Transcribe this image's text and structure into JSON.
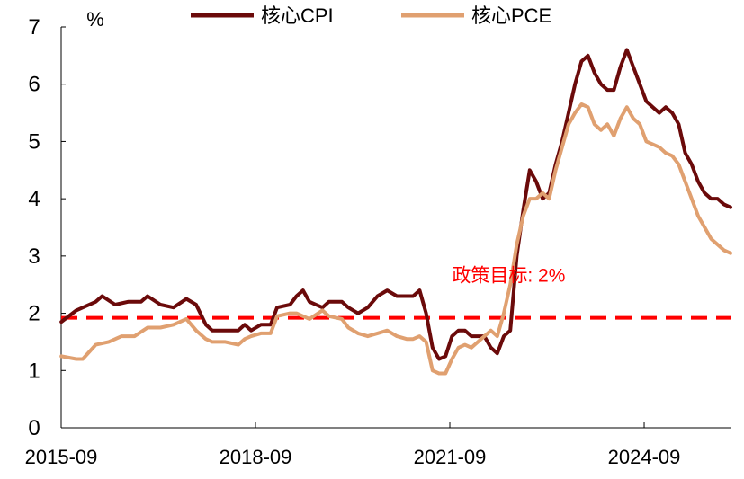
{
  "chart_data": {
    "type": "line",
    "ylabel": "%",
    "ylim": [
      0,
      7
    ],
    "yticks": [
      0,
      1,
      2,
      3,
      4,
      5,
      6,
      7
    ],
    "xlim": [
      2015.667,
      2026.0
    ],
    "xticks": [
      {
        "label": "2015-09",
        "value": 2015.667
      },
      {
        "label": "2018-09",
        "value": 2018.667
      },
      {
        "label": "2021-09",
        "value": 2021.667
      },
      {
        "label": "2024-09",
        "value": 2024.667
      }
    ],
    "legend_position": "top",
    "annotation": {
      "text": "政策目标: 2%",
      "x": 2021.7,
      "y": 2.55
    },
    "series": [
      {
        "name": "核心CPI",
        "color": "#6b0a0a",
        "actual": [
          [
            2015.67,
            1.85
          ],
          [
            2015.9,
            2.05
          ],
          [
            2016.2,
            2.2
          ],
          [
            2016.3,
            2.3
          ],
          [
            2016.5,
            2.15
          ],
          [
            2016.7,
            2.2
          ],
          [
            2016.9,
            2.2
          ],
          [
            2017.0,
            2.3
          ],
          [
            2017.2,
            2.15
          ],
          [
            2017.4,
            2.1
          ],
          [
            2017.6,
            2.25
          ],
          [
            2017.75,
            2.15
          ],
          [
            2017.9,
            1.8
          ],
          [
            2018.0,
            1.7
          ],
          [
            2018.2,
            1.7
          ],
          [
            2018.4,
            1.7
          ],
          [
            2018.5,
            1.8
          ],
          [
            2018.6,
            1.7
          ],
          [
            2018.75,
            1.8
          ],
          [
            2018.9,
            1.8
          ],
          [
            2019.0,
            2.1
          ],
          [
            2019.2,
            2.15
          ],
          [
            2019.3,
            2.3
          ],
          [
            2019.4,
            2.4
          ],
          [
            2019.5,
            2.2
          ],
          [
            2019.7,
            2.1
          ],
          [
            2019.8,
            2.2
          ],
          [
            2020.0,
            2.2
          ],
          [
            2020.1,
            2.1
          ],
          [
            2020.25,
            2.0
          ],
          [
            2020.4,
            2.1
          ],
          [
            2020.55,
            2.3
          ],
          [
            2020.7,
            2.4
          ],
          [
            2020.85,
            2.3
          ],
          [
            2021.0,
            2.3
          ],
          [
            2021.1,
            2.3
          ],
          [
            2021.2,
            2.4
          ],
          [
            2021.3,
            2.0
          ],
          [
            2021.4,
            1.4
          ],
          [
            2021.5,
            1.2
          ],
          [
            2021.6,
            1.25
          ],
          [
            2021.7,
            1.6
          ],
          [
            2021.8,
            1.7
          ],
          [
            2021.9,
            1.7
          ],
          [
            2022.0,
            1.6
          ],
          [
            2022.1,
            1.6
          ],
          [
            2022.2,
            1.6
          ],
          [
            2022.3,
            1.4
          ],
          [
            2022.4,
            1.3
          ],
          [
            2022.5,
            1.6
          ],
          [
            2022.6,
            1.7
          ],
          [
            2022.7,
            3.0
          ],
          [
            2022.8,
            3.8
          ],
          [
            2022.9,
            4.5
          ],
          [
            2023.0,
            4.3
          ],
          [
            2023.1,
            4.0
          ],
          [
            2023.2,
            4.1
          ],
          [
            2023.3,
            4.6
          ],
          [
            2023.4,
            5.0
          ],
          [
            2023.5,
            5.5
          ],
          [
            2023.6,
            6.0
          ],
          [
            2023.7,
            6.4
          ],
          [
            2023.8,
            6.5
          ],
          [
            2023.9,
            6.2
          ],
          [
            2024.0,
            6.0
          ],
          [
            2024.1,
            5.9
          ],
          [
            2024.2,
            5.9
          ],
          [
            2024.3,
            6.3
          ],
          [
            2024.4,
            6.6
          ],
          [
            2024.5,
            6.3
          ],
          [
            2024.6,
            6.0
          ],
          [
            2024.7,
            5.7
          ],
          [
            2024.8,
            5.6
          ],
          [
            2024.9,
            5.5
          ],
          [
            2025.0,
            5.6
          ],
          [
            2025.1,
            5.5
          ],
          [
            2025.2,
            5.3
          ],
          [
            2025.3,
            4.8
          ],
          [
            2025.4,
            4.6
          ],
          [
            2025.5,
            4.3
          ],
          [
            2025.6,
            4.1
          ],
          [
            2025.7,
            4.0
          ],
          [
            2025.8,
            4.0
          ],
          [
            2025.9,
            3.9
          ],
          [
            2026.0,
            3.85
          ]
        ]
      },
      {
        "name": "核心PCE",
        "color": "#e0a070",
        "actual": [
          [
            2015.67,
            1.25
          ],
          [
            2015.9,
            1.2
          ],
          [
            2016.0,
            1.2
          ],
          [
            2016.2,
            1.45
          ],
          [
            2016.4,
            1.5
          ],
          [
            2016.6,
            1.6
          ],
          [
            2016.8,
            1.6
          ],
          [
            2017.0,
            1.75
          ],
          [
            2017.2,
            1.75
          ],
          [
            2017.4,
            1.8
          ],
          [
            2017.6,
            1.9
          ],
          [
            2017.75,
            1.7
          ],
          [
            2017.9,
            1.55
          ],
          [
            2018.0,
            1.5
          ],
          [
            2018.2,
            1.5
          ],
          [
            2018.4,
            1.45
          ],
          [
            2018.5,
            1.55
          ],
          [
            2018.6,
            1.6
          ],
          [
            2018.75,
            1.65
          ],
          [
            2018.9,
            1.65
          ],
          [
            2019.0,
            1.95
          ],
          [
            2019.2,
            2.0
          ],
          [
            2019.3,
            2.0
          ],
          [
            2019.4,
            1.95
          ],
          [
            2019.5,
            1.9
          ],
          [
            2019.7,
            2.05
          ],
          [
            2019.8,
            1.95
          ],
          [
            2020.0,
            1.9
          ],
          [
            2020.1,
            1.75
          ],
          [
            2020.25,
            1.65
          ],
          [
            2020.4,
            1.6
          ],
          [
            2020.55,
            1.65
          ],
          [
            2020.7,
            1.7
          ],
          [
            2020.85,
            1.6
          ],
          [
            2021.0,
            1.55
          ],
          [
            2021.1,
            1.55
          ],
          [
            2021.2,
            1.6
          ],
          [
            2021.3,
            1.5
          ],
          [
            2021.4,
            1.0
          ],
          [
            2021.5,
            0.95
          ],
          [
            2021.6,
            0.95
          ],
          [
            2021.7,
            1.2
          ],
          [
            2021.8,
            1.4
          ],
          [
            2021.9,
            1.45
          ],
          [
            2022.0,
            1.4
          ],
          [
            2022.1,
            1.5
          ],
          [
            2022.2,
            1.6
          ],
          [
            2022.3,
            1.7
          ],
          [
            2022.4,
            1.6
          ],
          [
            2022.5,
            2.0
          ],
          [
            2022.6,
            2.5
          ],
          [
            2022.7,
            3.2
          ],
          [
            2022.8,
            3.7
          ],
          [
            2022.9,
            4.0
          ],
          [
            2023.0,
            4.0
          ],
          [
            2023.1,
            4.1
          ],
          [
            2023.2,
            4.0
          ],
          [
            2023.3,
            4.5
          ],
          [
            2023.4,
            4.9
          ],
          [
            2023.5,
            5.3
          ],
          [
            2023.6,
            5.5
          ],
          [
            2023.7,
            5.65
          ],
          [
            2023.8,
            5.6
          ],
          [
            2023.9,
            5.3
          ],
          [
            2024.0,
            5.2
          ],
          [
            2024.1,
            5.3
          ],
          [
            2024.2,
            5.1
          ],
          [
            2024.3,
            5.4
          ],
          [
            2024.4,
            5.6
          ],
          [
            2024.5,
            5.4
          ],
          [
            2024.6,
            5.3
          ],
          [
            2024.7,
            5.0
          ],
          [
            2024.8,
            4.95
          ],
          [
            2024.9,
            4.9
          ],
          [
            2025.0,
            4.8
          ],
          [
            2025.1,
            4.75
          ],
          [
            2025.2,
            4.6
          ],
          [
            2025.3,
            4.3
          ],
          [
            2025.4,
            4.0
          ],
          [
            2025.5,
            3.7
          ],
          [
            2025.6,
            3.5
          ],
          [
            2025.7,
            3.3
          ],
          [
            2025.8,
            3.2
          ],
          [
            2025.9,
            3.1
          ],
          [
            2026.0,
            3.05
          ]
        ]
      }
    ],
    "policy_target": {
      "label": "政策目标: 2%",
      "value": 1.92
    }
  }
}
